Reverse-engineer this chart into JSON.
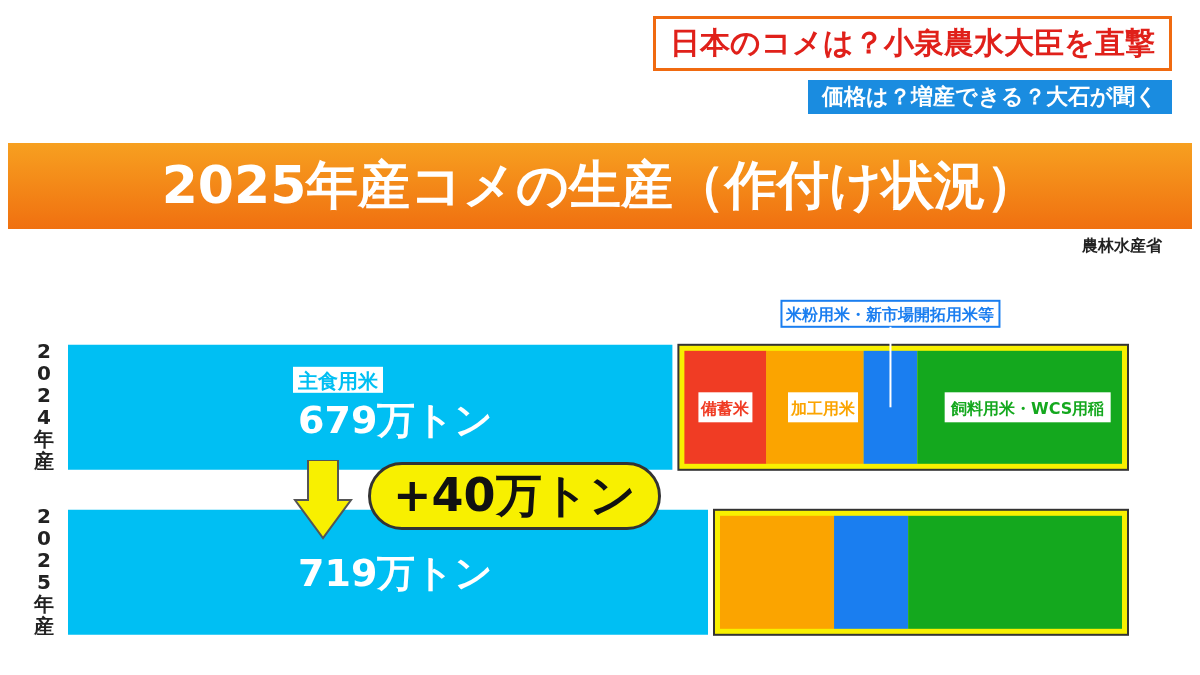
{
  "chart_data": {
    "type": "bar",
    "orientation": "horizontal",
    "title": "2025年産コメの生産（作付け状況）",
    "annotations": [
      "日本のコメは？小泉農水大臣を直撃",
      "価格は？増産できる？大石が聞く",
      "農林水産省",
      "+40万トン"
    ],
    "categories": [
      "2024年産",
      "2025年産"
    ],
    "series": [
      {
        "name": "主食用米",
        "color": "#00bff3",
        "values": [
          679,
          719
        ],
        "value_labels": [
          "679万トン",
          "719万トン"
        ]
      },
      {
        "name": "備蓄米",
        "color": "#f03c24",
        "values": [
          null,
          null
        ]
      },
      {
        "name": "加工用米",
        "color": "#fba400",
        "values": [
          null,
          null
        ]
      },
      {
        "name": "米粉用米・新市場開拓用米等",
        "color": "#1a7ef0",
        "values": [
          null,
          null
        ]
      },
      {
        "name": "飼料用米・WCS用稲",
        "color": "#14a81e",
        "values": [
          null,
          null
        ]
      }
    ]
  }
}
